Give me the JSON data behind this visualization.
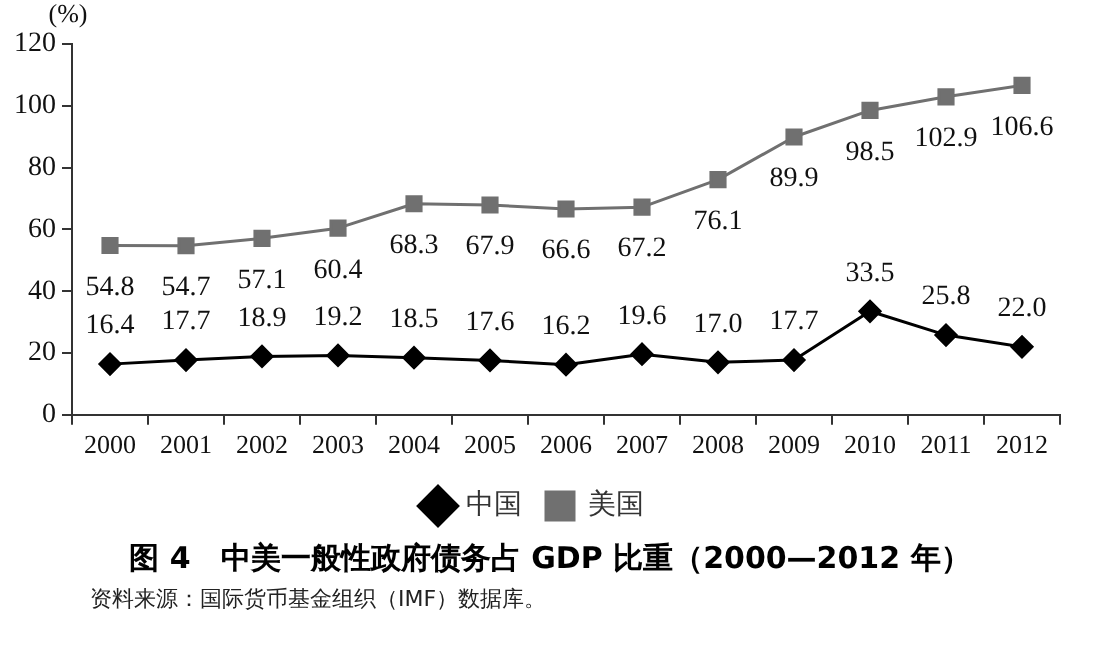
{
  "chart_data": {
    "type": "line",
    "title": "图 4　中美一般性政府债务占 GDP 比重（2000—2012 年）",
    "ylabel": "(%)",
    "annotations": [
      "资料来源：国际货币基金组织（IMF）数据库。"
    ],
    "categories": [
      "2000",
      "2001",
      "2002",
      "2003",
      "2004",
      "2005",
      "2006",
      "2007",
      "2008",
      "2009",
      "2010",
      "2011",
      "2012"
    ],
    "series": [
      {
        "name": "中国",
        "color": "#000000",
        "marker": "diamond",
        "values": [
          16.4,
          17.7,
          18.9,
          19.2,
          18.5,
          17.6,
          16.2,
          19.6,
          17.0,
          17.7,
          33.5,
          25.8,
          22.0
        ],
        "value_labels": [
          "16.4",
          "17.7",
          "18.9",
          "19.2",
          "18.5",
          "17.6",
          "16.2",
          "19.6",
          "17.0",
          "17.7",
          "33.5",
          "25.8",
          "22.0"
        ]
      },
      {
        "name": "美国",
        "color": "#707070",
        "marker": "square",
        "values": [
          54.8,
          54.7,
          57.1,
          60.4,
          68.3,
          67.9,
          66.6,
          67.2,
          76.1,
          89.9,
          98.5,
          102.9,
          106.6
        ],
        "value_labels": [
          "54.8",
          "54.7",
          "57.1",
          "60.4",
          "68.3",
          "67.9",
          "66.6",
          "67.2",
          "76.1",
          "89.9",
          "98.5",
          "102.9",
          "106.6"
        ]
      }
    ],
    "ylim": [
      0,
      120
    ],
    "yticks": [
      0,
      20,
      40,
      60,
      80,
      100,
      120
    ],
    "grid": false,
    "legend": "bottom",
    "line_style": "solid"
  }
}
